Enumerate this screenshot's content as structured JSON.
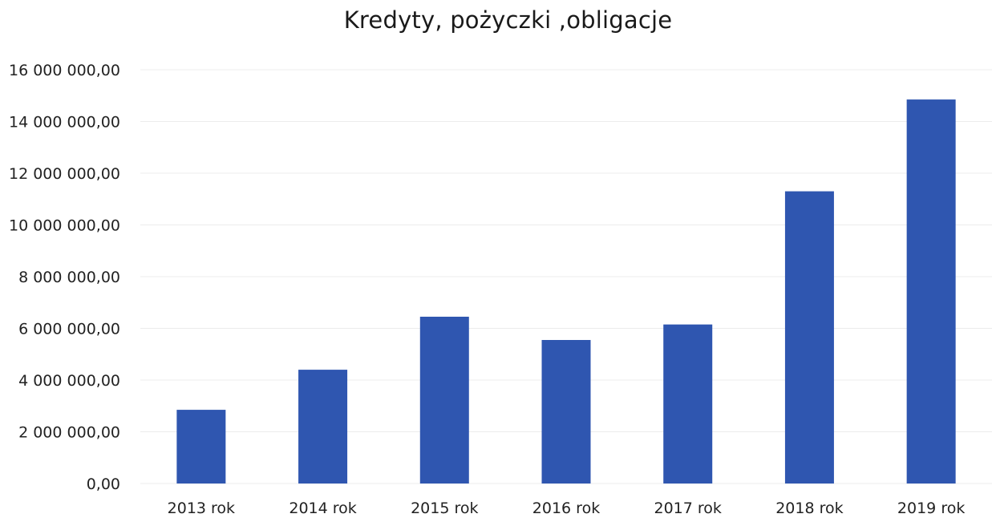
{
  "chart_data": {
    "type": "bar",
    "title": "Kredyty, pożyczki ,obligacje",
    "xlabel": "",
    "ylabel": "",
    "categories": [
      "2013 rok",
      "2014 rok",
      "2015 rok",
      "2016 rok",
      "2017 rok",
      "2018 rok",
      "2019 rok"
    ],
    "values": [
      2850000,
      4400000,
      6450000,
      5550000,
      6150000,
      11300000,
      14850000
    ],
    "ylim": [
      0,
      16000000
    ],
    "yticks": [
      0,
      2000000,
      4000000,
      6000000,
      8000000,
      10000000,
      12000000,
      14000000,
      16000000
    ],
    "ytick_labels": [
      "0,00",
      "2 000 000,00",
      "4 000 000,00",
      "6 000 000,00",
      "8 000 000,00",
      "10 000 000,00",
      "12 000 000,00",
      "14 000 000,00",
      "16 000 000,00"
    ],
    "grid": true,
    "legend": "none",
    "bar_color": "#2f56b0",
    "gridline_color": "#ececec"
  }
}
